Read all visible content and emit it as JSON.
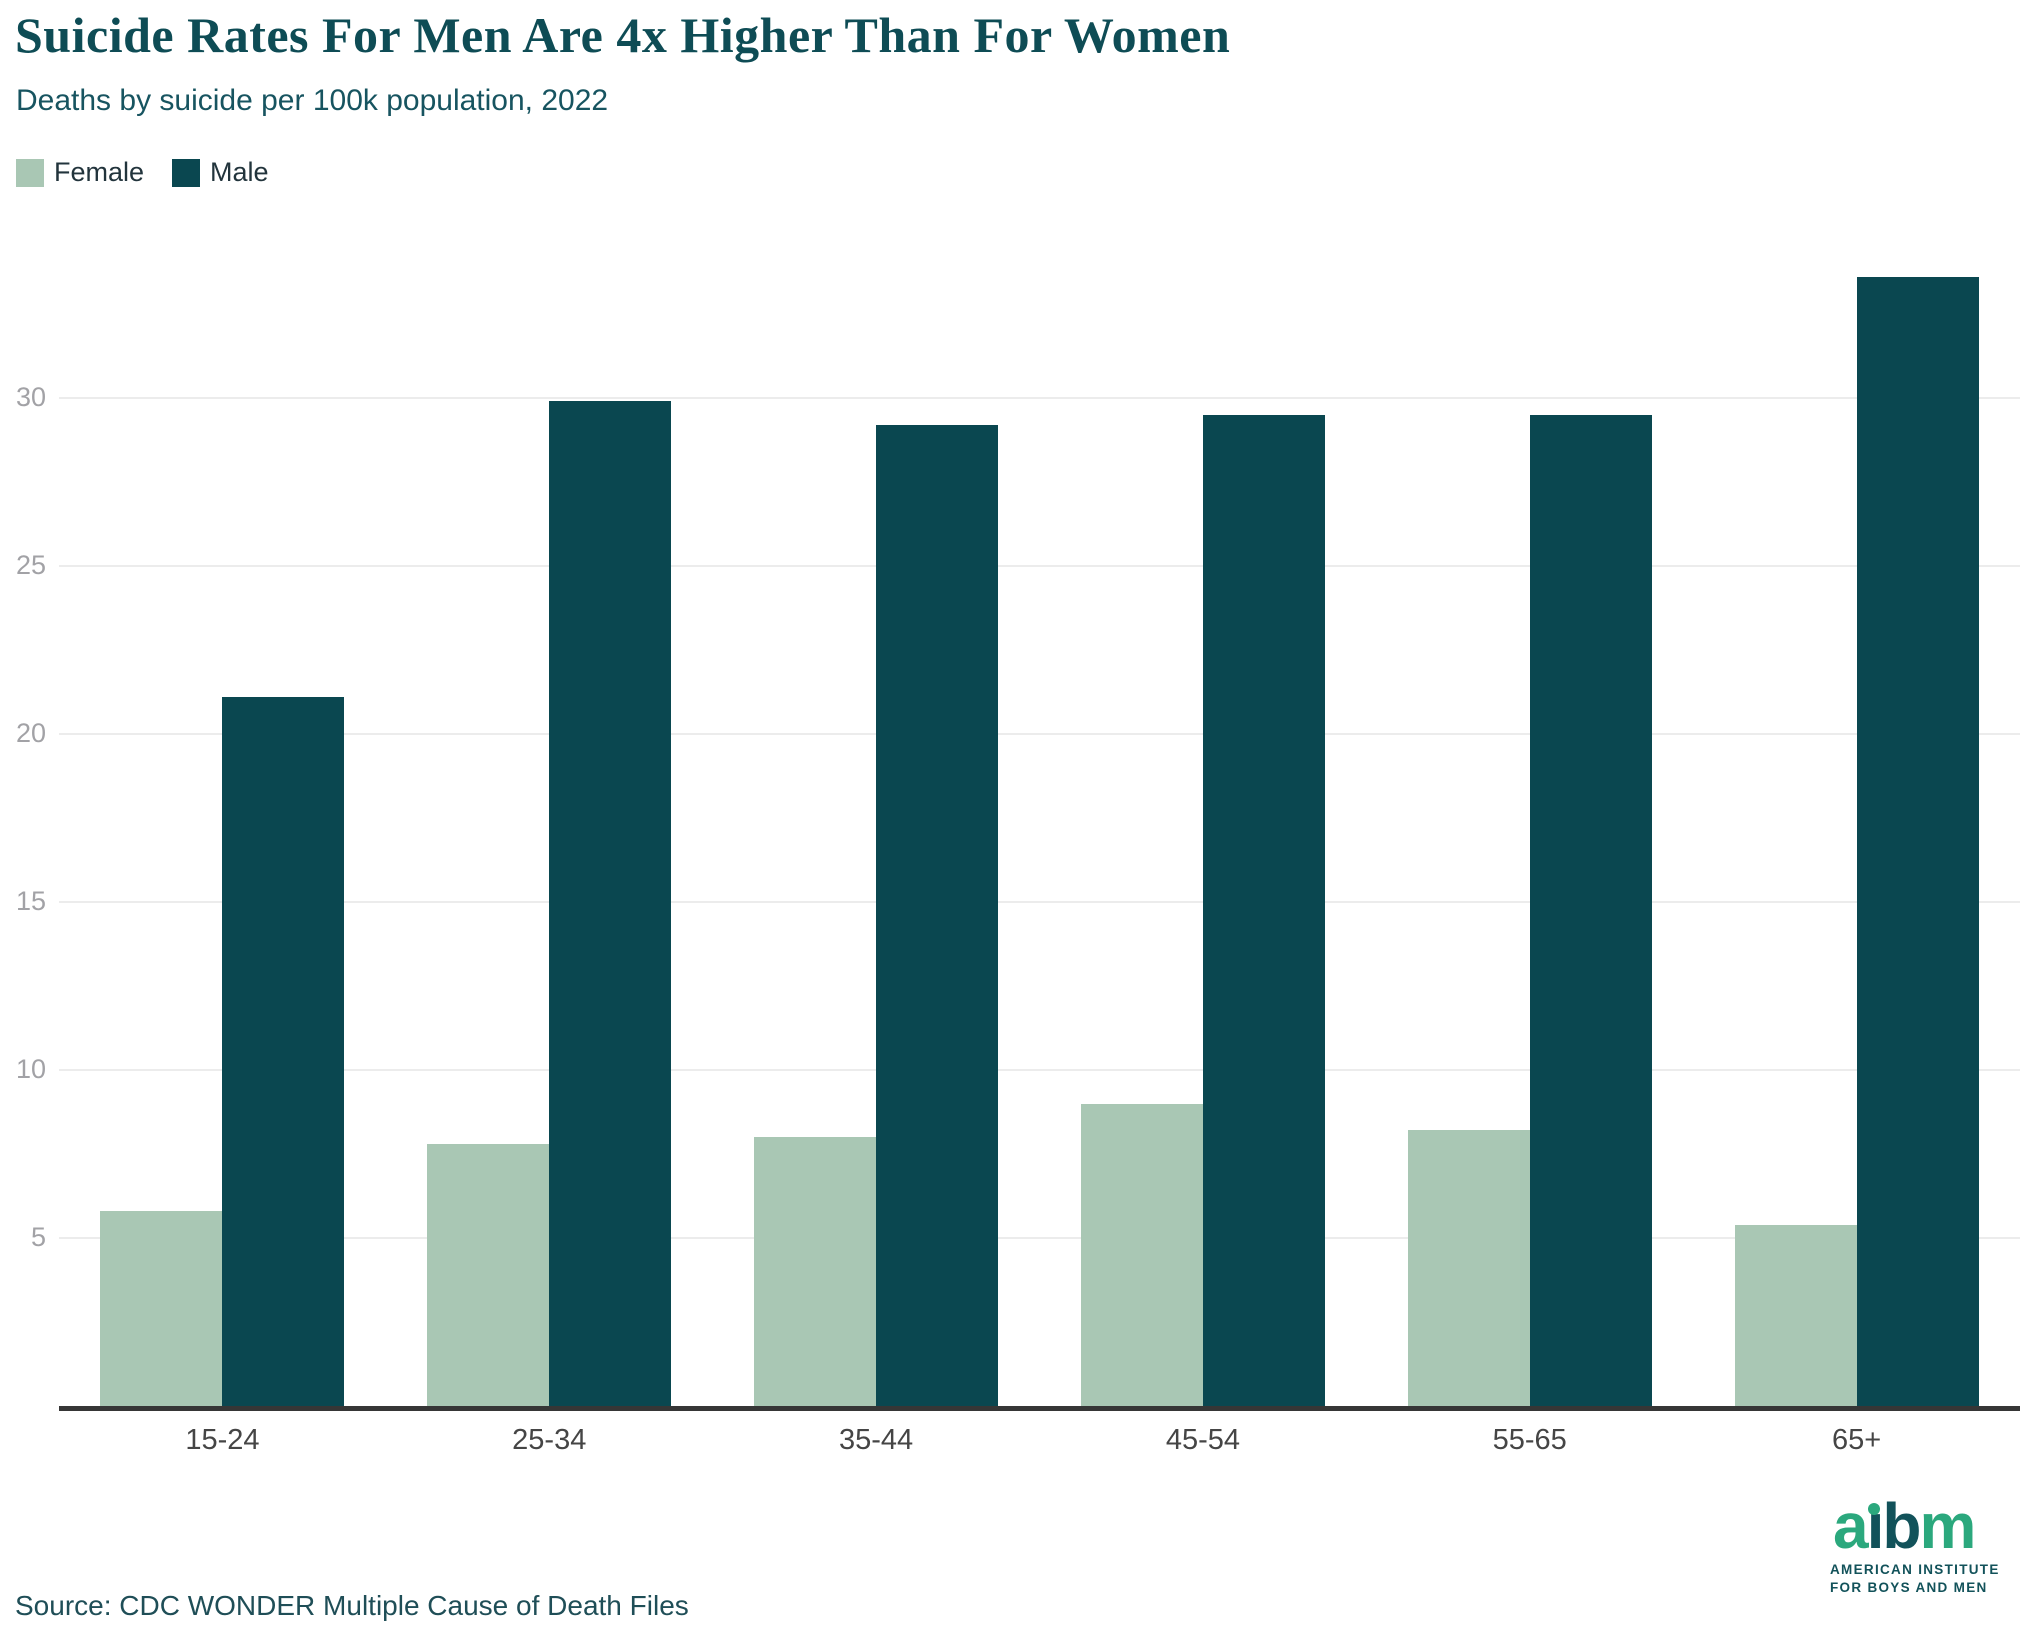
{
  "title": "Suicide Rates For Men Are 4x Higher Than For Women",
  "subtitle": "Deaths by suicide per 100k population, 2022",
  "source": "Source: CDC WONDER Multiple Cause of Death Files",
  "colors": {
    "female": "#a9c7b4",
    "male": "#0a4750",
    "title_teal": "#0e4c55",
    "subtitle_teal": "#175460",
    "source_teal": "#1f4e57",
    "logo_green": "#2ba87d",
    "logo_dark": "#12525a",
    "axis_line": "#363636",
    "gridline": "#ececec",
    "ytick_gray": "#a2a2a6",
    "xtick_gray": "#454545"
  },
  "chart_data": {
    "type": "bar",
    "categories": [
      "15-24",
      "25-34",
      "35-44",
      "45-54",
      "55-65",
      "65+"
    ],
    "series": [
      {
        "name": "Female",
        "color": "#a9c7b4",
        "values": [
          5.8,
          7.8,
          8.0,
          9.0,
          8.2,
          5.4
        ]
      },
      {
        "name": "Male",
        "color": "#0a4750",
        "values": [
          21.1,
          29.9,
          29.2,
          29.5,
          29.5,
          33.6
        ]
      }
    ],
    "title": "Suicide Rates For Men Are 4x Higher Than For Women",
    "subtitle": "Deaths by suicide per 100k population, 2022",
    "xlabel": "",
    "ylabel": "",
    "ylim": [
      0,
      36.6
    ],
    "yticks": [
      5,
      10,
      15,
      20,
      25,
      30
    ],
    "grid": true,
    "legend_position": "top-left",
    "bar_orientation": "vertical"
  },
  "logo": {
    "wordmark": [
      {
        "letter": "a",
        "color_key": "logo_green"
      },
      {
        "letter": "i",
        "color_key": "logo_dark",
        "dot_color_key": "logo_green"
      },
      {
        "letter": "b",
        "color_key": "logo_dark"
      },
      {
        "letter": "m",
        "color_key": "logo_green"
      }
    ],
    "line1": "AMERICAN INSTITUTE",
    "line2": "FOR BOYS AND MEN"
  }
}
